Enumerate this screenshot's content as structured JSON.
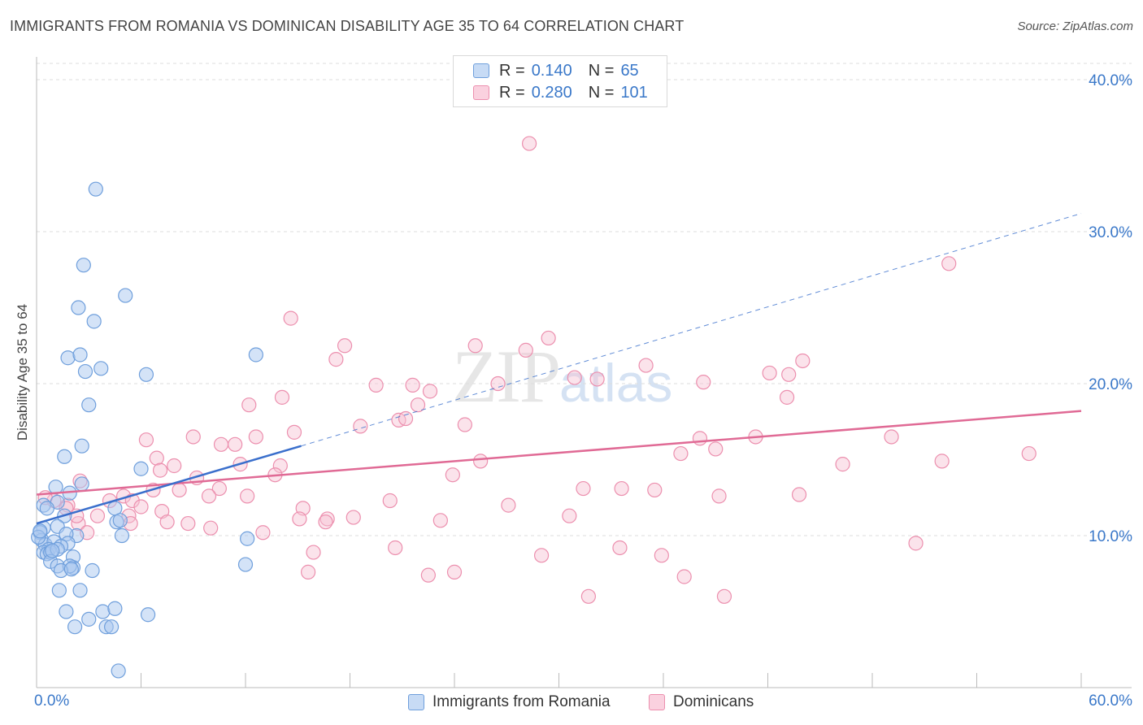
{
  "header": {
    "title": "IMMIGRANTS FROM ROMANIA VS DOMINICAN DISABILITY AGE 35 TO 64 CORRELATION CHART",
    "source": "Source: ZipAtlas.com"
  },
  "watermark": {
    "zip": "ZIP",
    "atlas": "atlas"
  },
  "legend": {
    "rows": [
      {
        "r_label": "R =",
        "r_value": "0.140",
        "n_label": "N =",
        "n_value": "65"
      },
      {
        "r_label": "R =",
        "r_value": "0.280",
        "n_label": "N =",
        "n_value": "101"
      }
    ]
  },
  "bottom_legend": {
    "series1": "Immigrants from Romania",
    "series2": "Dominicans"
  },
  "colors": {
    "blue_fill": "#a9c8f0",
    "blue_stroke": "#6f9fdc",
    "blue_line": "#3a6fcc",
    "pink_fill": "#f7c0d2",
    "pink_stroke": "#ec8fae",
    "pink_line": "#e06a95",
    "axis_label": "#3a78c9",
    "grid": "#dddddd"
  },
  "chart_data": {
    "type": "scatter",
    "title": "IMMIGRANTS FROM ROMANIA VS DOMINICAN DISABILITY AGE 35 TO 64 CORRELATION CHART",
    "ylabel": "Disability Age 35 to 64",
    "xlabel": "",
    "xlim": [
      0,
      60
    ],
    "ylim": [
      0,
      41.5
    ],
    "x_tick_labels": [
      "0.0%",
      "60.0%"
    ],
    "y_ticks": [
      10,
      20,
      30,
      40
    ],
    "y_tick_labels": [
      "10.0%",
      "20.0%",
      "30.0%",
      "40.0%"
    ],
    "grid": "horizontal dashed",
    "series": [
      {
        "name": "Immigrants from Romania",
        "color": "#a9c8f0",
        "r": "0.140",
        "n": "65",
        "trend": {
          "x0": 0,
          "y0": 10.8,
          "x1": 15.2,
          "y1": 15.9,
          "dashed_to_x": 60,
          "dashed_to_y": 31.2
        },
        "points": [
          [
            3.4,
            32.8
          ],
          [
            2.7,
            27.8
          ],
          [
            5.1,
            25.8
          ],
          [
            2.4,
            25.0
          ],
          [
            3.3,
            24.1
          ],
          [
            1.8,
            21.7
          ],
          [
            2.5,
            21.9
          ],
          [
            12.6,
            21.9
          ],
          [
            3.7,
            21.0
          ],
          [
            2.8,
            20.8
          ],
          [
            6.3,
            20.6
          ],
          [
            3.0,
            18.6
          ],
          [
            1.6,
            15.2
          ],
          [
            2.6,
            15.9
          ],
          [
            6.0,
            14.4
          ],
          [
            1.1,
            13.2
          ],
          [
            2.6,
            13.4
          ],
          [
            1.9,
            12.8
          ],
          [
            0.4,
            12.0
          ],
          [
            1.2,
            12.2
          ],
          [
            1.6,
            11.3
          ],
          [
            4.5,
            11.8
          ],
          [
            4.6,
            10.9
          ],
          [
            4.8,
            11.0
          ],
          [
            1.2,
            10.6
          ],
          [
            0.4,
            10.5
          ],
          [
            0.2,
            10.2
          ],
          [
            2.3,
            10.0
          ],
          [
            1.7,
            10.1
          ],
          [
            4.9,
            10.0
          ],
          [
            12.1,
            9.8
          ],
          [
            0.3,
            9.7
          ],
          [
            0.5,
            9.4
          ],
          [
            1.0,
            9.6
          ],
          [
            1.8,
            9.5
          ],
          [
            1.4,
            9.3
          ],
          [
            0.7,
            9.1
          ],
          [
            0.4,
            8.9
          ],
          [
            0.6,
            8.8
          ],
          [
            0.8,
            8.9
          ],
          [
            1.2,
            9.1
          ],
          [
            2.1,
            8.6
          ],
          [
            0.8,
            8.3
          ],
          [
            1.2,
            8.0
          ],
          [
            2.1,
            7.9
          ],
          [
            1.9,
            8.0
          ],
          [
            3.2,
            7.7
          ],
          [
            12.0,
            8.1
          ],
          [
            1.4,
            7.7
          ],
          [
            2.5,
            6.4
          ],
          [
            1.3,
            6.4
          ],
          [
            1.7,
            5.0
          ],
          [
            3.8,
            5.0
          ],
          [
            4.5,
            5.2
          ],
          [
            6.4,
            4.8
          ],
          [
            3.0,
            4.5
          ],
          [
            2.2,
            4.0
          ],
          [
            4.0,
            4.0
          ],
          [
            4.3,
            4.0
          ],
          [
            4.7,
            1.1
          ],
          [
            0.1,
            9.9
          ],
          [
            0.2,
            10.3
          ],
          [
            0.9,
            9.0
          ],
          [
            2.0,
            7.8
          ],
          [
            0.6,
            11.8
          ]
        ]
      },
      {
        "name": "Dominicans",
        "color": "#f7c0d2",
        "r": "0.280",
        "n": "101",
        "trend": {
          "x0": 0,
          "y0": 12.7,
          "x1": 60,
          "y1": 18.2
        },
        "points": [
          [
            28.3,
            35.8
          ],
          [
            52.4,
            27.9
          ],
          [
            14.6,
            24.3
          ],
          [
            29.4,
            23.0
          ],
          [
            25.2,
            22.5
          ],
          [
            17.7,
            22.5
          ],
          [
            28.1,
            22.2
          ],
          [
            17.2,
            21.6
          ],
          [
            44.0,
            21.5
          ],
          [
            35.0,
            21.2
          ],
          [
            42.1,
            20.7
          ],
          [
            43.2,
            20.6
          ],
          [
            30.9,
            20.4
          ],
          [
            32.2,
            20.3
          ],
          [
            38.3,
            20.1
          ],
          [
            19.5,
            19.9
          ],
          [
            26.5,
            20.0
          ],
          [
            21.6,
            19.9
          ],
          [
            22.6,
            19.5
          ],
          [
            43.1,
            19.1
          ],
          [
            14.1,
            19.1
          ],
          [
            12.2,
            18.6
          ],
          [
            21.9,
            18.6
          ],
          [
            20.8,
            17.6
          ],
          [
            21.2,
            17.7
          ],
          [
            24.6,
            17.3
          ],
          [
            18.6,
            17.2
          ],
          [
            14.8,
            16.8
          ],
          [
            9.0,
            16.5
          ],
          [
            12.6,
            16.5
          ],
          [
            6.3,
            16.3
          ],
          [
            10.6,
            16.0
          ],
          [
            11.4,
            16.0
          ],
          [
            38.1,
            16.4
          ],
          [
            41.3,
            16.5
          ],
          [
            49.1,
            16.5
          ],
          [
            39.0,
            15.7
          ],
          [
            37.0,
            15.4
          ],
          [
            6.9,
            15.1
          ],
          [
            11.7,
            14.7
          ],
          [
            25.5,
            14.9
          ],
          [
            7.9,
            14.6
          ],
          [
            14.0,
            14.6
          ],
          [
            7.1,
            14.3
          ],
          [
            23.9,
            14.0
          ],
          [
            2.5,
            13.6
          ],
          [
            9.2,
            13.8
          ],
          [
            13.7,
            14.0
          ],
          [
            6.7,
            13.0
          ],
          [
            8.2,
            13.0
          ],
          [
            10.5,
            13.1
          ],
          [
            12.1,
            12.6
          ],
          [
            9.9,
            12.6
          ],
          [
            5.0,
            12.6
          ],
          [
            31.4,
            13.1
          ],
          [
            33.6,
            13.1
          ],
          [
            35.5,
            13.0
          ],
          [
            39.2,
            12.6
          ],
          [
            20.3,
            12.3
          ],
          [
            27.1,
            12.0
          ],
          [
            4.2,
            12.3
          ],
          [
            5.5,
            12.3
          ],
          [
            6.0,
            11.9
          ],
          [
            1.0,
            12.3
          ],
          [
            1.8,
            12.0
          ],
          [
            0.5,
            12.5
          ],
          [
            3.5,
            11.3
          ],
          [
            5.3,
            11.3
          ],
          [
            7.2,
            11.6
          ],
          [
            15.3,
            11.8
          ],
          [
            16.7,
            11.1
          ],
          [
            18.2,
            11.2
          ],
          [
            15.1,
            11.1
          ],
          [
            7.5,
            10.9
          ],
          [
            2.4,
            10.8
          ],
          [
            5.4,
            10.8
          ],
          [
            8.7,
            10.8
          ],
          [
            10.0,
            10.5
          ],
          [
            16.6,
            10.9
          ],
          [
            23.2,
            11.0
          ],
          [
            2.9,
            10.2
          ],
          [
            13.0,
            10.2
          ],
          [
            1.7,
            11.8
          ],
          [
            2.3,
            11.3
          ],
          [
            30.6,
            11.3
          ],
          [
            46.3,
            14.7
          ],
          [
            52.0,
            14.9
          ],
          [
            57.0,
            15.4
          ],
          [
            50.5,
            9.5
          ],
          [
            20.6,
            9.2
          ],
          [
            33.5,
            9.2
          ],
          [
            15.9,
            8.9
          ],
          [
            29.0,
            8.7
          ],
          [
            35.9,
            8.7
          ],
          [
            15.6,
            7.6
          ],
          [
            22.5,
            7.4
          ],
          [
            24.0,
            7.6
          ],
          [
            37.2,
            7.3
          ],
          [
            31.7,
            6.0
          ],
          [
            39.5,
            6.0
          ],
          [
            43.8,
            12.7
          ]
        ]
      }
    ]
  }
}
